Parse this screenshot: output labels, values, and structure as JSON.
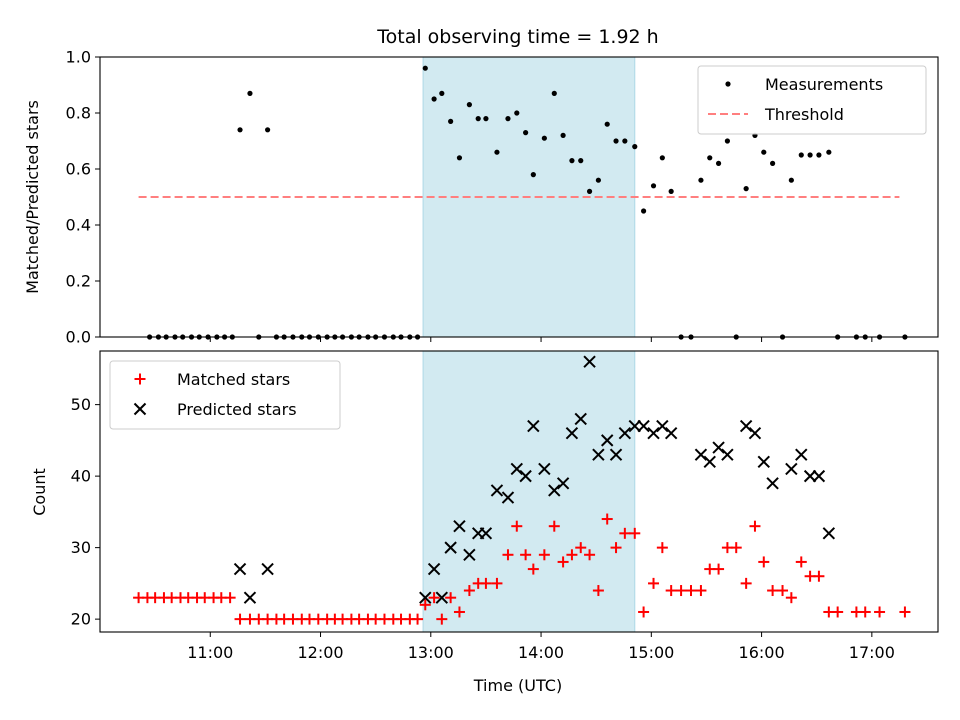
{
  "chart_data": {
    "title": "Total observing time = 1.92 h",
    "xlabel": "Time (UTC)",
    "x_unit": "hours UTC",
    "xlim": [
      10.0,
      17.6
    ],
    "xticks": [
      {
        "value": 11,
        "label": "11:00"
      },
      {
        "value": 12,
        "label": "12:00"
      },
      {
        "value": 13,
        "label": "13:00"
      },
      {
        "value": 14,
        "label": "14:00"
      },
      {
        "value": 15,
        "label": "15:00"
      },
      {
        "value": 16,
        "label": "16:00"
      },
      {
        "value": 17,
        "label": "17:00"
      }
    ],
    "shaded_interval": {
      "x0": 12.93,
      "x1": 14.85,
      "color": "#add8e6"
    },
    "panels": [
      {
        "type": "scatter",
        "ylabel": "Matched/Predicted stars",
        "ylim": [
          0,
          1.0
        ],
        "yticks": [
          "0.0",
          "0.2",
          "0.4",
          "0.6",
          "0.8",
          "1.0"
        ],
        "ytick_values": [
          0,
          0.2,
          0.4,
          0.6,
          0.8,
          1.0
        ],
        "legend_position": "top-right",
        "series": [
          {
            "name": "Measurements",
            "kind": "scatter-dot",
            "color": "#000000",
            "x": [
              10.45,
              10.53,
              10.6,
              10.68,
              10.75,
              10.83,
              10.9,
              10.98,
              11.06,
              11.13,
              11.2,
              11.27,
              11.36,
              11.44,
              11.52,
              11.6,
              11.67,
              11.75,
              11.83,
              11.9,
              11.98,
              12.06,
              12.13,
              12.2,
              12.28,
              12.35,
              12.43,
              12.5,
              12.58,
              12.66,
              12.73,
              12.81,
              12.88,
              12.95,
              13.03,
              13.1,
              13.18,
              13.26,
              13.35,
              13.43,
              13.5,
              13.6,
              13.7,
              13.78,
              13.86,
              13.93,
              14.03,
              14.12,
              14.2,
              14.28,
              14.36,
              14.44,
              14.52,
              14.6,
              14.68,
              14.76,
              14.85,
              14.93,
              15.02,
              15.1,
              15.18,
              15.27,
              15.36,
              15.45,
              15.53,
              15.61,
              15.69,
              15.77,
              15.86,
              15.94,
              16.02,
              16.1,
              16.19,
              16.27,
              16.36,
              16.44,
              16.52,
              16.61,
              16.69,
              16.86,
              16.94,
              17.07,
              17.3
            ],
            "y": [
              0,
              0,
              0,
              0,
              0,
              0,
              0,
              0,
              0,
              0,
              0,
              0.74,
              0.87,
              0,
              0.74,
              0,
              0,
              0,
              0,
              0,
              0,
              0,
              0,
              0,
              0,
              0,
              0,
              0,
              0,
              0,
              0,
              0,
              0,
              0.96,
              0.85,
              0.87,
              0.77,
              0.64,
              0.83,
              0.78,
              0.78,
              0.66,
              0.78,
              0.8,
              0.73,
              0.58,
              0.71,
              0.87,
              0.72,
              0.63,
              0.63,
              0.52,
              0.56,
              0.76,
              0.7,
              0.7,
              0.68,
              0.45,
              0.54,
              0.64,
              0.52,
              0,
              0,
              0.56,
              0.64,
              0.62,
              0.7,
              0,
              0.53,
              0.72,
              0.66,
              0.62,
              0,
              0.56,
              0.65,
              0.65,
              0.65,
              0.66,
              0,
              0,
              0,
              0,
              0
            ]
          },
          {
            "name": "Threshold",
            "kind": "dashed-line",
            "color": "#ff7f7f",
            "x": [
              10.35,
              17.25
            ],
            "y": [
              0.5,
              0.5
            ]
          }
        ]
      },
      {
        "type": "scatter",
        "ylabel": "Count",
        "ylim": [
          18.2,
          57.5
        ],
        "yticks": [
          "20",
          "30",
          "40",
          "50"
        ],
        "ytick_values": [
          20,
          30,
          40,
          50
        ],
        "legend_position": "top-left",
        "series": [
          {
            "name": "Matched stars",
            "kind": "plus",
            "color": "#ff0000",
            "x": [
              10.35,
              10.43,
              10.5,
              10.58,
              10.65,
              10.73,
              10.8,
              10.88,
              10.95,
              11.03,
              11.1,
              11.18,
              11.27,
              11.36,
              11.44,
              11.52,
              11.6,
              11.67,
              11.75,
              11.83,
              11.9,
              11.98,
              12.06,
              12.13,
              12.2,
              12.28,
              12.35,
              12.43,
              12.5,
              12.58,
              12.66,
              12.73,
              12.81,
              12.88,
              12.95,
              13.03,
              13.1,
              13.18,
              13.26,
              13.35,
              13.43,
              13.5,
              13.6,
              13.7,
              13.78,
              13.86,
              13.93,
              14.03,
              14.12,
              14.2,
              14.28,
              14.36,
              14.44,
              14.52,
              14.6,
              14.68,
              14.76,
              14.85,
              14.93,
              15.02,
              15.1,
              15.18,
              15.27,
              15.36,
              15.45,
              15.53,
              15.61,
              15.69,
              15.77,
              15.86,
              15.94,
              16.02,
              16.1,
              16.19,
              16.27,
              16.36,
              16.44,
              16.52,
              16.61,
              16.69,
              16.86,
              16.94,
              17.07,
              17.3
            ],
            "y": [
              23,
              23,
              23,
              23,
              23,
              23,
              23,
              23,
              23,
              23,
              23,
              23,
              20,
              20,
              20,
              20,
              20,
              20,
              20,
              20,
              20,
              20,
              20,
              20,
              20,
              20,
              20,
              20,
              20,
              20,
              20,
              20,
              20,
              20,
              22,
              23,
              20,
              23,
              21,
              24,
              25,
              25,
              25,
              29,
              33,
              29,
              27,
              29,
              33,
              28,
              29,
              30,
              29,
              24,
              34,
              30,
              32,
              32,
              21,
              25,
              30,
              24,
              24,
              24,
              24,
              27,
              27,
              30,
              30,
              25,
              33,
              28,
              24,
              24,
              23,
              28,
              26,
              26,
              21,
              21,
              21,
              21,
              21,
              21
            ]
          },
          {
            "name": "Predicted stars",
            "kind": "x",
            "color": "#000000",
            "x": [
              11.27,
              11.36,
              11.52,
              12.95,
              13.03,
              13.1,
              13.18,
              13.26,
              13.35,
              13.43,
              13.5,
              13.6,
              13.7,
              13.78,
              13.86,
              13.93,
              14.03,
              14.12,
              14.2,
              14.28,
              14.36,
              14.44,
              14.52,
              14.6,
              14.68,
              14.76,
              14.85,
              14.93,
              15.02,
              15.1,
              15.18,
              15.45,
              15.53,
              15.61,
              15.69,
              15.86,
              15.94,
              16.02,
              16.1,
              16.27,
              16.36,
              16.44,
              16.52,
              16.61
            ],
            "y": [
              27,
              23,
              27,
              23,
              27,
              23,
              30,
              33,
              29,
              32,
              32,
              38,
              37,
              41,
              40,
              47,
              41,
              38,
              39,
              46,
              48,
              56,
              43,
              45,
              43,
              46,
              47,
              47,
              46,
              47,
              46,
              43,
              42,
              44,
              43,
              47,
              46,
              42,
              39,
              41,
              43,
              40,
              40,
              32
            ]
          }
        ]
      }
    ]
  }
}
